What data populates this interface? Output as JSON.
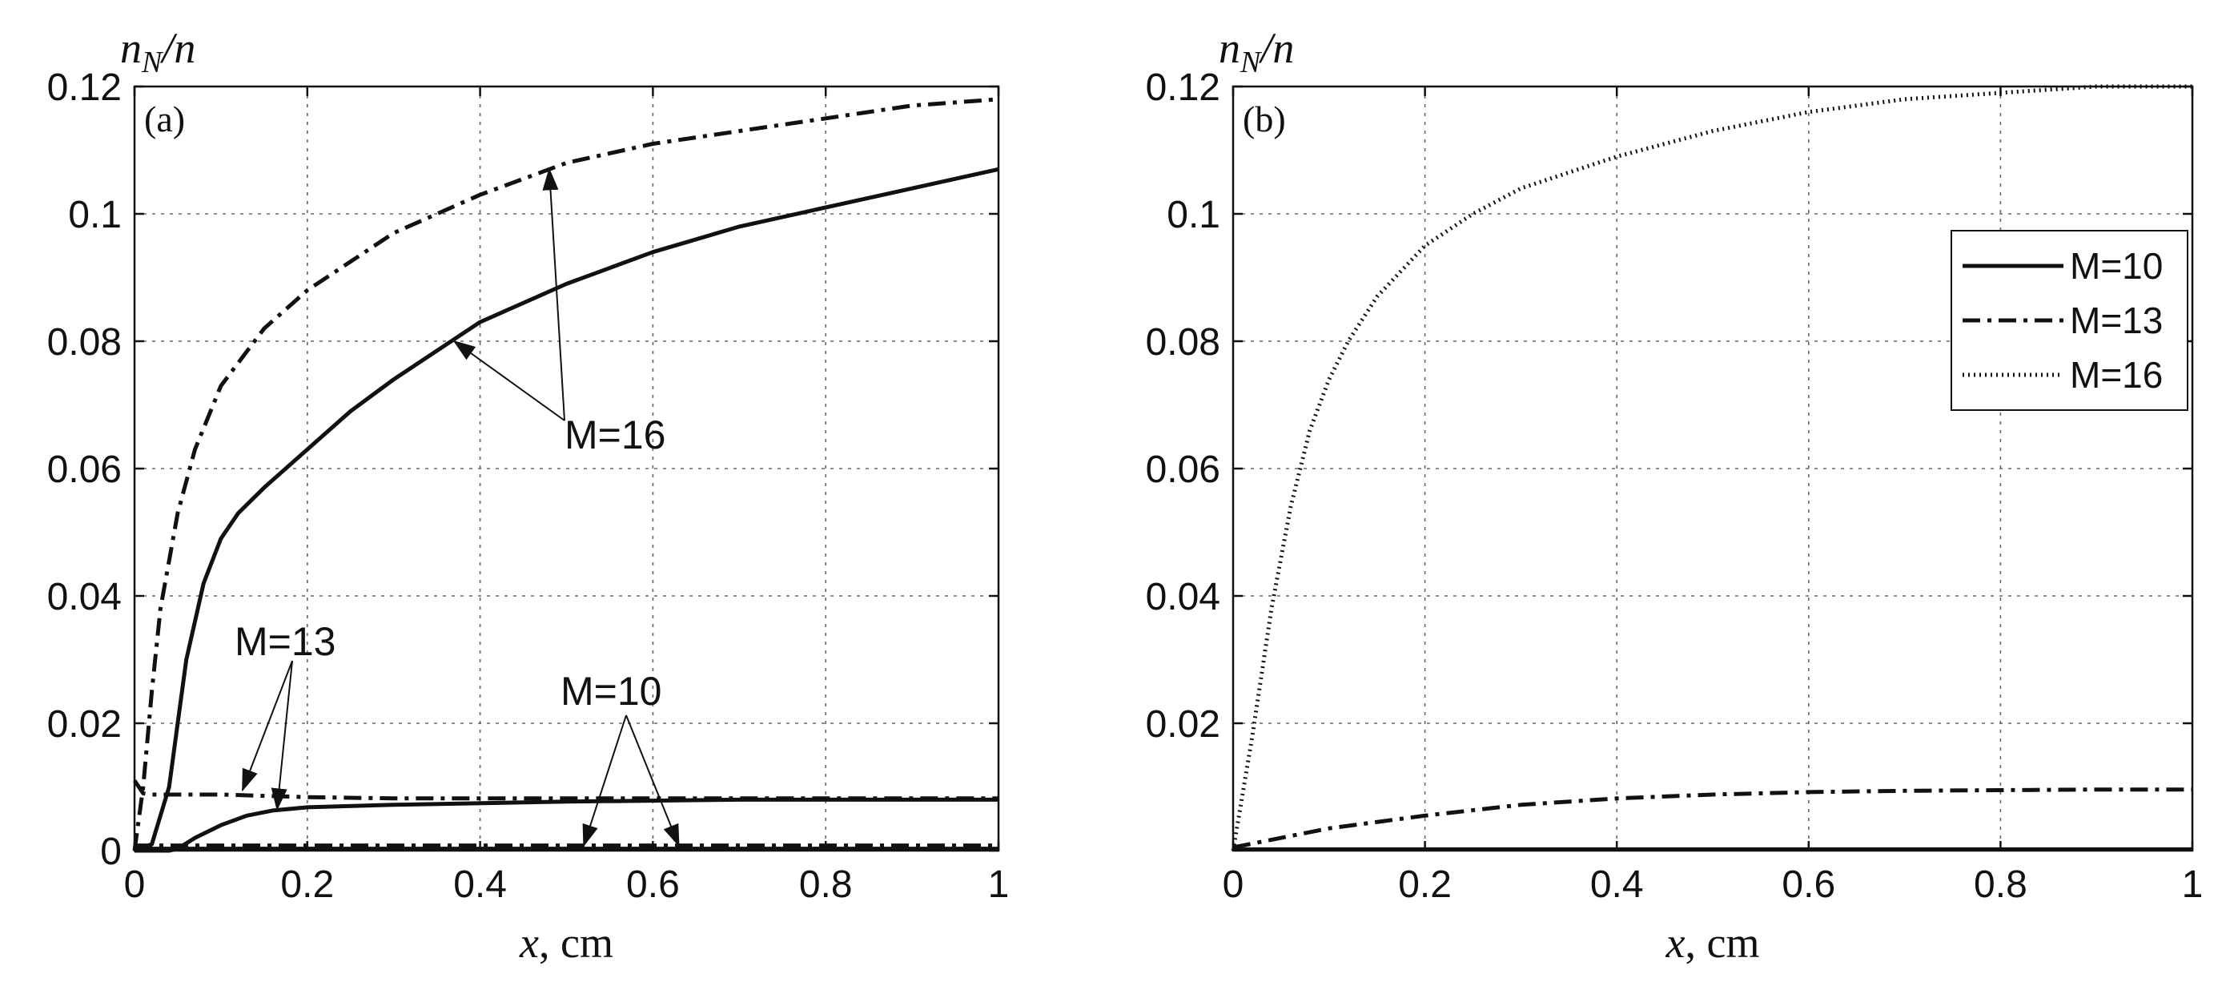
{
  "chart_data": [
    {
      "type": "line",
      "panel_label": "(a)",
      "ylabel_main": "n",
      "ylabel_sub": "N",
      "ylabel_tail": "/n",
      "xlabel_var": "x",
      "xlabel_unit": ", cm",
      "xlim": [
        0,
        1
      ],
      "ylim": [
        0,
        0.12
      ],
      "xticks": [
        "0",
        "0.2",
        "0.4",
        "0.6",
        "0.8",
        "1"
      ],
      "yticks": [
        "0",
        "0.02",
        "0.04",
        "0.06",
        "0.08",
        "0.1",
        "0.12"
      ],
      "grid": true,
      "annotations": [
        "M=16",
        "M=13",
        "M=10"
      ],
      "series": [
        {
          "style": "solid",
          "x": [
            0,
            0.02,
            0.04,
            0.05,
            0.06,
            0.08,
            0.1,
            0.12,
            0.15,
            0.2,
            0.25,
            0.3,
            0.4,
            0.5,
            0.6,
            0.7,
            0.8,
            0.9,
            1.0
          ],
          "y": [
            0,
            0.001,
            0.01,
            0.02,
            0.03,
            0.042,
            0.049,
            0.053,
            0.057,
            0.063,
            0.069,
            0.074,
            0.083,
            0.089,
            0.094,
            0.098,
            0.101,
            0.104,
            0.107
          ]
        },
        {
          "style": "dashdot",
          "x": [
            0,
            0.01,
            0.02,
            0.03,
            0.05,
            0.07,
            0.1,
            0.15,
            0.2,
            0.3,
            0.4,
            0.5,
            0.6,
            0.7,
            0.8,
            0.9,
            1.0
          ],
          "y": [
            0,
            0.01,
            0.025,
            0.038,
            0.053,
            0.063,
            0.073,
            0.082,
            0.088,
            0.097,
            0.103,
            0.108,
            0.111,
            0.113,
            0.115,
            0.117,
            0.118
          ]
        },
        {
          "style": "solid",
          "x": [
            0,
            0.04,
            0.05,
            0.07,
            0.1,
            0.13,
            0.16,
            0.2,
            0.3,
            0.5,
            0.7,
            1.0
          ],
          "y": [
            0,
            0,
            0.0003,
            0.002,
            0.004,
            0.0055,
            0.0063,
            0.0068,
            0.0072,
            0.0077,
            0.008,
            0.008
          ]
        },
        {
          "style": "dashdot",
          "x": [
            0,
            0.01,
            0.02,
            0.05,
            0.1,
            0.15,
            0.2,
            0.3,
            0.5,
            0.7,
            1.0
          ],
          "y": [
            0.011,
            0.009,
            0.0088,
            0.0088,
            0.0088,
            0.0086,
            0.0084,
            0.0082,
            0.0082,
            0.0082,
            0.0082
          ]
        },
        {
          "style": "solid",
          "x": [
            0,
            1.0
          ],
          "y": [
            0.0003,
            0.0003
          ]
        },
        {
          "style": "dashdot",
          "x": [
            0,
            1.0
          ],
          "y": [
            0.0008,
            0.0008
          ]
        }
      ]
    },
    {
      "type": "line",
      "panel_label": "(b)",
      "ylabel_main": "n",
      "ylabel_sub": "N",
      "ylabel_tail": "/n",
      "xlabel_var": "x",
      "xlabel_unit": ", cm",
      "xlim": [
        0,
        1
      ],
      "ylim": [
        0,
        0.12
      ],
      "xticks": [
        "0",
        "0.2",
        "0.4",
        "0.6",
        "0.8",
        "1"
      ],
      "yticks": [
        "0.02",
        "0.04",
        "0.06",
        "0.08",
        "0.1",
        "0.12"
      ],
      "grid": true,
      "legend_position": "upper right",
      "series": [
        {
          "name": "M=10",
          "style": "solid",
          "x": [
            0,
            1.0
          ],
          "y": [
            0.0002,
            0.0002
          ]
        },
        {
          "name": "M=13",
          "style": "dashdot",
          "x": [
            0,
            0.05,
            0.1,
            0.2,
            0.3,
            0.4,
            0.5,
            0.6,
            0.7,
            0.8,
            0.9,
            1.0
          ],
          "y": [
            0.0005,
            0.002,
            0.0035,
            0.0055,
            0.0072,
            0.0082,
            0.0088,
            0.0092,
            0.0094,
            0.0095,
            0.0096,
            0.0096
          ]
        },
        {
          "name": "M=16",
          "style": "dotted",
          "x": [
            0,
            0.02,
            0.04,
            0.06,
            0.08,
            0.1,
            0.12,
            0.15,
            0.2,
            0.25,
            0.3,
            0.4,
            0.5,
            0.6,
            0.7,
            0.8,
            0.9,
            1.0
          ],
          "y": [
            0,
            0.018,
            0.038,
            0.054,
            0.066,
            0.074,
            0.08,
            0.087,
            0.095,
            0.1,
            0.104,
            0.109,
            0.113,
            0.116,
            0.118,
            0.119,
            0.12,
            0.12
          ]
        }
      ]
    }
  ]
}
